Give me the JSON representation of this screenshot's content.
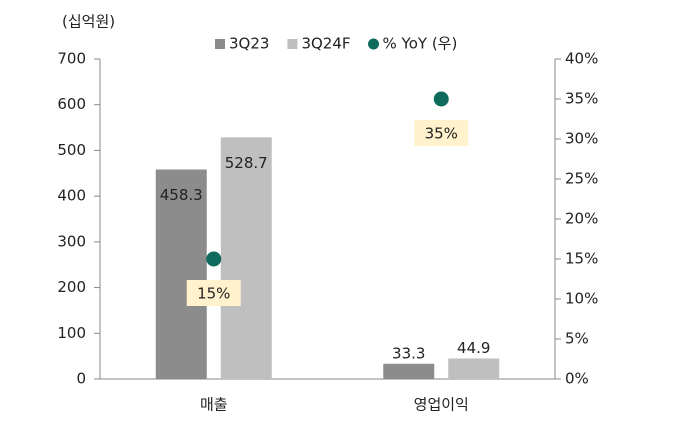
{
  "chart_data": {
    "type": "bar",
    "y_label": "(십억원)",
    "categories": [
      "매출",
      "영업이익"
    ],
    "series": [
      {
        "name": "3Q23",
        "color": "#8c8c8c",
        "values": [
          458.3,
          33.3
        ]
      },
      {
        "name": "3Q24F",
        "color": "#bfbfbf",
        "values": [
          528.7,
          44.9
        ]
      },
      {
        "name": "% YoY (우)",
        "color": "#0f6b5c",
        "axis": "y2",
        "type": "scatter",
        "values": [
          15,
          35
        ],
        "value_labels": [
          "15%",
          "35%"
        ]
      }
    ],
    "ylim": [
      0,
      700
    ],
    "yticks": [
      0,
      100,
      200,
      300,
      400,
      500,
      600,
      700
    ],
    "y2lim": [
      0,
      40
    ],
    "y2ticks": [
      {
        "value": 0,
        "label": "0%"
      },
      {
        "value": 5,
        "label": "5%"
      },
      {
        "value": 10,
        "label": "10%"
      },
      {
        "value": 15,
        "label": "15%"
      },
      {
        "value": 20,
        "label": "20%"
      },
      {
        "value": 25,
        "label": "25%"
      },
      {
        "value": 30,
        "label": "30%"
      },
      {
        "value": 35,
        "label": "35%"
      },
      {
        "value": 40,
        "label": "40%"
      }
    ],
    "label_box_color": "#fff2cc"
  }
}
